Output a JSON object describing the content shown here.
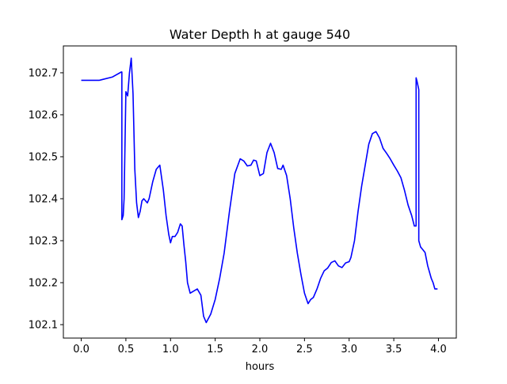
{
  "chart_data": {
    "type": "line",
    "title": "Water Depth h at gauge 540",
    "xlabel": "hours",
    "ylabel": "",
    "xlim": [
      -0.2,
      4.2
    ],
    "ylim": [
      102.068,
      102.764
    ],
    "grid": false,
    "legend": "none",
    "x_ticks": [
      0.0,
      0.5,
      1.0,
      1.5,
      2.0,
      2.5,
      3.0,
      3.5,
      4.0
    ],
    "x_tick_labels": [
      "0.0",
      "0.5",
      "1.0",
      "1.5",
      "2.0",
      "2.5",
      "3.0",
      "3.5",
      "4.0"
    ],
    "y_ticks": [
      102.1,
      102.2,
      102.3,
      102.4,
      102.5,
      102.6,
      102.7
    ],
    "y_tick_labels": [
      "102.1",
      "102.2",
      "102.3",
      "102.4",
      "102.5",
      "102.6",
      "102.7"
    ],
    "series": [
      {
        "color": "#0000ff",
        "x": [
          0.0,
          0.2,
          0.35,
          0.45,
          0.455,
          0.455,
          0.47,
          0.48,
          0.5,
          0.52,
          0.54,
          0.56,
          0.58,
          0.6,
          0.62,
          0.64,
          0.66,
          0.68,
          0.7,
          0.72,
          0.74,
          0.76,
          0.8,
          0.84,
          0.88,
          0.92,
          0.95,
          0.98,
          1.0,
          1.02,
          1.05,
          1.08,
          1.11,
          1.13,
          1.15,
          1.17,
          1.19,
          1.22,
          1.26,
          1.3,
          1.34,
          1.37,
          1.4,
          1.45,
          1.5,
          1.55,
          1.6,
          1.66,
          1.72,
          1.78,
          1.82,
          1.86,
          1.9,
          1.93,
          1.96,
          2.0,
          2.04,
          2.08,
          2.12,
          2.16,
          2.2,
          2.24,
          2.26,
          2.3,
          2.34,
          2.38,
          2.42,
          2.46,
          2.5,
          2.54,
          2.57,
          2.6,
          2.64,
          2.68,
          2.72,
          2.76,
          2.8,
          2.84,
          2.88,
          2.92,
          2.96,
          3.0,
          3.02,
          3.06,
          3.1,
          3.14,
          3.18,
          3.22,
          3.26,
          3.3,
          3.34,
          3.38,
          3.42,
          3.46,
          3.5,
          3.54,
          3.58,
          3.62,
          3.66,
          3.7,
          3.73,
          3.75,
          3.75,
          3.76,
          3.78,
          3.78,
          3.8,
          3.82,
          3.85,
          3.88,
          3.9,
          3.92,
          3.94,
          3.96,
          3.97,
          3.99
        ],
        "y": [
          102.682,
          102.682,
          102.69,
          102.702,
          102.702,
          102.35,
          102.36,
          102.4,
          102.655,
          102.645,
          102.7,
          102.735,
          102.65,
          102.47,
          102.39,
          102.355,
          102.37,
          102.395,
          102.4,
          102.395,
          102.39,
          102.4,
          102.44,
          102.47,
          102.48,
          102.42,
          102.36,
          102.315,
          102.295,
          102.31,
          102.31,
          102.32,
          102.34,
          102.335,
          102.29,
          102.25,
          102.2,
          102.175,
          102.18,
          102.185,
          102.17,
          102.12,
          102.105,
          102.125,
          102.16,
          102.21,
          102.27,
          102.37,
          102.46,
          102.495,
          102.49,
          102.478,
          102.48,
          102.492,
          102.49,
          102.455,
          102.46,
          102.51,
          102.532,
          102.51,
          102.472,
          102.47,
          102.48,
          102.455,
          102.4,
          102.33,
          102.27,
          102.22,
          102.175,
          102.15,
          102.16,
          102.165,
          102.185,
          102.21,
          102.228,
          102.235,
          102.248,
          102.252,
          102.24,
          102.236,
          102.247,
          102.25,
          102.26,
          102.3,
          102.37,
          102.43,
          102.48,
          102.53,
          102.555,
          102.56,
          102.545,
          102.52,
          102.508,
          102.495,
          102.48,
          102.466,
          102.45,
          102.42,
          102.385,
          102.36,
          102.335,
          102.335,
          102.688,
          102.68,
          102.66,
          102.3,
          102.285,
          102.28,
          102.272,
          102.24,
          102.225,
          102.21,
          102.2,
          102.185,
          102.185,
          102.185
        ]
      }
    ]
  }
}
